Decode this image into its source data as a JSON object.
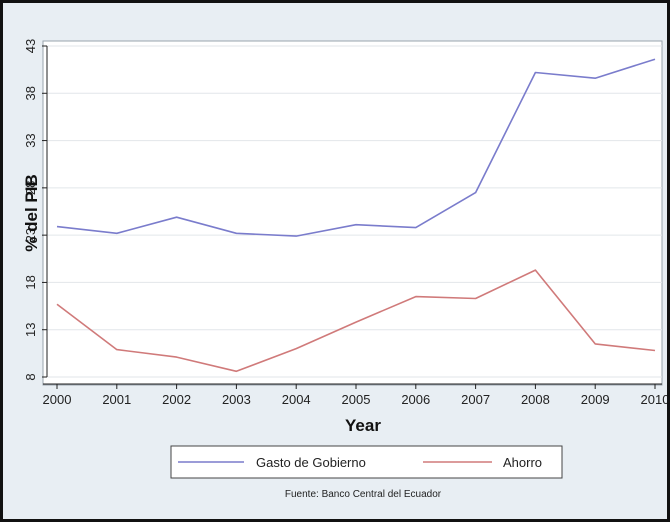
{
  "chart_data": {
    "type": "line",
    "title": "",
    "xlabel": "Year",
    "ylabel": "% del PIB",
    "x": [
      2000,
      2001,
      2002,
      2003,
      2004,
      2005,
      2006,
      2007,
      2008,
      2009,
      2010
    ],
    "x_ticks": [
      "2000",
      "2001",
      "2002",
      "2003",
      "2004",
      "2005",
      "2006",
      "2007",
      "2008",
      "2009",
      "2010"
    ],
    "y_ticks": [
      "8",
      "13",
      "18",
      "23",
      "28",
      "33",
      "38",
      "43"
    ],
    "xlim": [
      2000,
      2010
    ],
    "ylim": [
      8,
      43
    ],
    "grid": true,
    "legend_position": "bottom",
    "series": [
      {
        "name": "Gasto de Gobierno",
        "color": "#7a7ccc",
        "values": [
          23.9,
          23.2,
          24.9,
          23.2,
          22.9,
          24.1,
          23.8,
          27.5,
          40.2,
          39.6,
          41.6
        ]
      },
      {
        "name": "Ahorro",
        "color": "#d07a7a",
        "values": [
          15.7,
          10.9,
          10.1,
          8.6,
          11.0,
          13.8,
          16.5,
          16.3,
          19.3,
          11.5,
          10.8
        ]
      }
    ],
    "note": "Fuente: Banco Central del Ecuador"
  }
}
